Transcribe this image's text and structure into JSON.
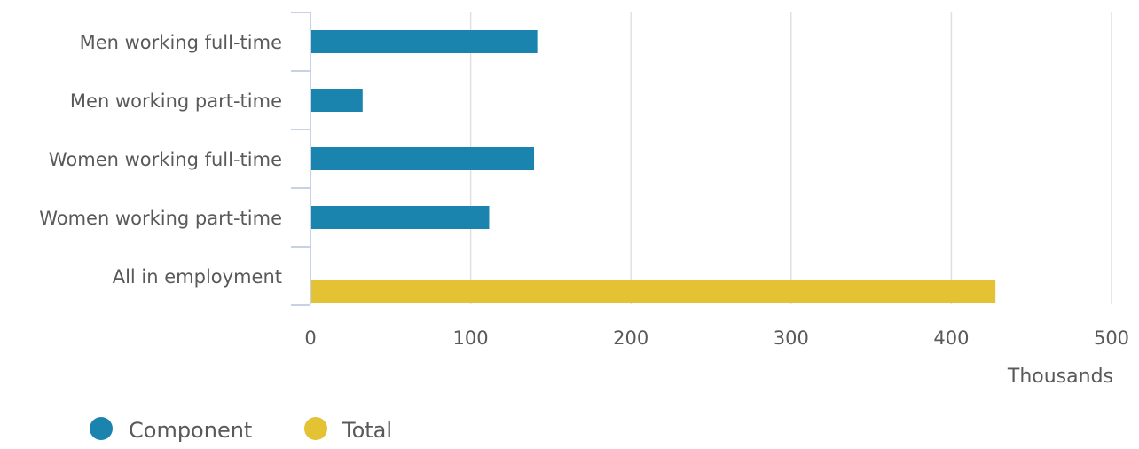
{
  "chart_data": {
    "type": "bar",
    "orientation": "horizontal",
    "categories": [
      "Men working full-time",
      "Men working part-time",
      "Women working full-time",
      "Women working part-time",
      "All in employment"
    ],
    "values": [
      141,
      32,
      139,
      111,
      427
    ],
    "bar_series": [
      "Component",
      "Component",
      "Component",
      "Component",
      "Total"
    ],
    "series": [
      {
        "name": "Component",
        "color": "#1b84ae"
      },
      {
        "name": "Total",
        "color": "#e3c234"
      }
    ],
    "xlabel": "Thousands",
    "ylabel": "",
    "xlim": [
      0,
      500
    ],
    "x_ticks": [
      0,
      100,
      200,
      300,
      400,
      500
    ],
    "grid": "vertical",
    "legend_position": "bottom-left",
    "colors": {
      "text": "#595959",
      "grid": "#e0e0e0",
      "axis": "#c8d2e6"
    }
  }
}
